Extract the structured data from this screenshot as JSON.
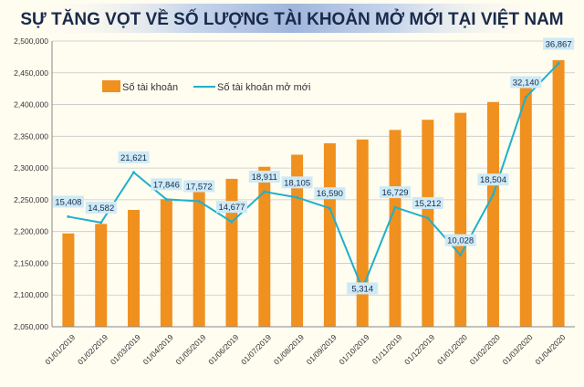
{
  "chart_data": {
    "type": "bar+line",
    "title": "SỰ TĂNG VỌT VỀ SỐ LƯỢNG TÀI KHOẢN MỞ MỚI TẠI VIỆT NAM",
    "categories": [
      "01/01/2019",
      "01/02/2019",
      "01/03/2019",
      "01/04/2019",
      "01/05/2019",
      "01/06/2019",
      "01/07/2019",
      "01/08/2019",
      "01/09/2019",
      "01/10/2019",
      "01/11/2019",
      "01/12/2019",
      "01/01/2020",
      "01/02/2020",
      "01/03/2020",
      "01/04/2020"
    ],
    "ylim": [
      2050000,
      2500000
    ],
    "yticks": [
      "2,050,000",
      "2,100,000",
      "2,150,000",
      "2,200,000",
      "2,250,000",
      "2,300,000",
      "2,350,000",
      "2,400,000",
      "2,450,000",
      "2,500,000"
    ],
    "secondary_ylim": [
      0,
      40000
    ],
    "grid": true,
    "legend_placement": "top-left",
    "series": [
      {
        "name": "Số tài khoản",
        "type": "bar",
        "color": "#f0901e",
        "values": [
          2197000,
          2212000,
          2234000,
          2251000,
          2265000,
          2283000,
          2302000,
          2321000,
          2339000,
          2345000,
          2360000,
          2376000,
          2387000,
          2404000,
          2432000,
          2470000
        ]
      },
      {
        "name": "Số tài khoản mở mới",
        "type": "line",
        "color": "#1fb0cc",
        "axis": "secondary",
        "values": [
          15408,
          14582,
          21621,
          17846,
          17572,
          14677,
          18911,
          18105,
          16590,
          5314,
          16729,
          15212,
          10028,
          18504,
          32140,
          36867
        ],
        "labels": [
          "15,408",
          "14,582",
          "21,621",
          "17,846",
          "17,572",
          "14,677",
          "18,911",
          "18,105",
          "16,590",
          "5,314",
          "16,729",
          "15,212",
          "10,028",
          "18,504",
          "32,140",
          "36,867"
        ]
      }
    ]
  }
}
